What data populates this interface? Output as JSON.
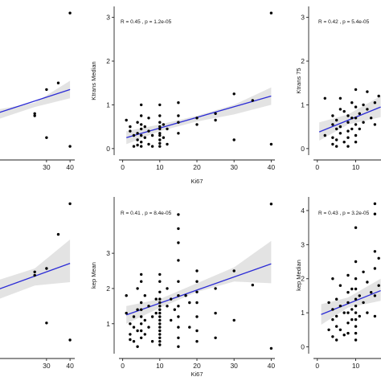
{
  "chart_data": [
    {
      "id": "top-left",
      "type": "scatter",
      "title": "",
      "xlabel": "",
      "ylabel": "",
      "stat": "",
      "xticks": [
        30,
        40
      ],
      "yticks": [],
      "xlim": [
        0,
        42
      ],
      "ylim": [
        -0.15,
        3.25
      ],
      "points": [
        [
          40,
          3.1
        ],
        [
          25,
          0.8
        ],
        [
          25,
          0.75
        ],
        [
          30,
          1.35
        ],
        [
          35,
          1.5
        ],
        [
          30,
          0.25
        ],
        [
          40,
          0.05
        ]
      ],
      "fit": {
        "x": [
          0,
          40
        ],
        "y": [
          0.65,
          1.35
        ]
      },
      "ci": {
        "x": [
          0,
          25,
          40
        ],
        "upper": [
          0.8,
          1.05,
          1.55
        ],
        "lower": [
          0.5,
          0.95,
          1.15
        ]
      }
    },
    {
      "id": "top-middle",
      "type": "scatter",
      "title": "",
      "xlabel": "Ki67",
      "ylabel": "Ktrans Median",
      "stat": "R = 0.45 , p = 1.2e-05",
      "xticks": [
        0,
        10,
        20,
        30,
        40
      ],
      "yticks": [
        0,
        1,
        2,
        3
      ],
      "xlim": [
        -1,
        41
      ],
      "ylim": [
        -0.15,
        3.25
      ],
      "points": [
        [
          40,
          3.1
        ],
        [
          1,
          0.65
        ],
        [
          2,
          0.5
        ],
        [
          2,
          0.4
        ],
        [
          3,
          0.3
        ],
        [
          3,
          0.05
        ],
        [
          4,
          0.6
        ],
        [
          4,
          0.35
        ],
        [
          4,
          0.2
        ],
        [
          4,
          0.08
        ],
        [
          5,
          1.0
        ],
        [
          5,
          0.75
        ],
        [
          5,
          0.55
        ],
        [
          5,
          0.45
        ],
        [
          5,
          0.3
        ],
        [
          5,
          0.15
        ],
        [
          5,
          0.05
        ],
        [
          6,
          0.5
        ],
        [
          6,
          0.25
        ],
        [
          7,
          0.7
        ],
        [
          7,
          0.4
        ],
        [
          7,
          0.1
        ],
        [
          8,
          0.3
        ],
        [
          8,
          0.05
        ],
        [
          10,
          1.0
        ],
        [
          10,
          0.75
        ],
        [
          10,
          0.6
        ],
        [
          10,
          0.5
        ],
        [
          10,
          0.45
        ],
        [
          10,
          0.35
        ],
        [
          10,
          0.3
        ],
        [
          10,
          0.2
        ],
        [
          10,
          0.12
        ],
        [
          10,
          0.05
        ],
        [
          11,
          0.55
        ],
        [
          11,
          0.25
        ],
        [
          12,
          0.45
        ],
        [
          12,
          0.1
        ],
        [
          15,
          1.05
        ],
        [
          15,
          0.75
        ],
        [
          15,
          0.6
        ],
        [
          15,
          0.35
        ],
        [
          20,
          0.7
        ],
        [
          20,
          0.55
        ],
        [
          25,
          0.65
        ],
        [
          25,
          0.8
        ],
        [
          30,
          1.25
        ],
        [
          30,
          0.2
        ],
        [
          35,
          1.1
        ],
        [
          40,
          0.1
        ]
      ],
      "fit": {
        "x": [
          1,
          40
        ],
        "y": [
          0.25,
          1.2
        ]
      },
      "ci": {
        "x": [
          1,
          10,
          20,
          30,
          40
        ],
        "upper": [
          0.4,
          0.55,
          0.75,
          1.0,
          1.4
        ],
        "lower": [
          0.1,
          0.4,
          0.62,
          0.78,
          1.0
        ]
      }
    },
    {
      "id": "top-right",
      "type": "scatter",
      "title": "",
      "xlabel": "",
      "ylabel": "Ktrans 75",
      "stat": "R = 0.42 , p = 5.4e-05",
      "xticks": [
        0,
        10
      ],
      "yticks": [
        0,
        1,
        2,
        3
      ],
      "xlim": [
        -1,
        17
      ],
      "ylim": [
        -0.15,
        3.25
      ],
      "points": [
        [
          2,
          1.15
        ],
        [
          2,
          0.3
        ],
        [
          4,
          0.75
        ],
        [
          4,
          0.55
        ],
        [
          4,
          0.25
        ],
        [
          4,
          0.1
        ],
        [
          5,
          0.65
        ],
        [
          5,
          0.45
        ],
        [
          5,
          0.2
        ],
        [
          5,
          0.05
        ],
        [
          6,
          1.15
        ],
        [
          6,
          0.9
        ],
        [
          6,
          0.5
        ],
        [
          6,
          0.35
        ],
        [
          7,
          0.85
        ],
        [
          7,
          0.15
        ],
        [
          8,
          0.75
        ],
        [
          8,
          0.6
        ],
        [
          8,
          0.4
        ],
        [
          8,
          0.25
        ],
        [
          8,
          0.05
        ],
        [
          9,
          1.05
        ],
        [
          9,
          0.7
        ],
        [
          9,
          0.45
        ],
        [
          10,
          1.35
        ],
        [
          10,
          0.95
        ],
        [
          10,
          0.7
        ],
        [
          10,
          0.55
        ],
        [
          10,
          0.3
        ],
        [
          10,
          0.15
        ],
        [
          11,
          0.8
        ],
        [
          11,
          0.45
        ],
        [
          12,
          1.0
        ],
        [
          12,
          0.6
        ],
        [
          13,
          1.3
        ],
        [
          13,
          0.9
        ],
        [
          14,
          0.7
        ],
        [
          15,
          1.05
        ],
        [
          15,
          0.55
        ],
        [
          16,
          1.2
        ]
      ],
      "fit": {
        "x": [
          0.5,
          16.5
        ],
        "y": [
          0.38,
          0.95
        ]
      },
      "ci": {
        "x": [
          0.5,
          8,
          16.5
        ],
        "upper": [
          0.6,
          0.78,
          1.2
        ],
        "lower": [
          0.18,
          0.55,
          0.72
        ]
      }
    },
    {
      "id": "bottom-left",
      "type": "scatter",
      "title": "",
      "xlabel": "",
      "ylabel": "",
      "stat": "",
      "xticks": [
        30,
        40
      ],
      "yticks": [],
      "xlim": [
        0,
        42
      ],
      "ylim": [
        0,
        4.6
      ],
      "points": [
        [
          40,
          4.4
        ],
        [
          35,
          3.5
        ],
        [
          25,
          2.4
        ],
        [
          25,
          2.3
        ],
        [
          30,
          2.5
        ],
        [
          30,
          0.9
        ],
        [
          40,
          0.4
        ]
      ],
      "fit": {
        "x": [
          0,
          40
        ],
        "y": [
          1.65,
          2.65
        ]
      },
      "ci": {
        "x": [
          0,
          25,
          40
        ],
        "upper": [
          1.95,
          2.5,
          3.35
        ],
        "lower": [
          1.35,
          2.0,
          2.1
        ]
      }
    },
    {
      "id": "bottom-middle",
      "type": "scatter",
      "title": "",
      "xlabel": "Ki67",
      "ylabel": "kep Mean",
      "stat": "R = 0.41 , p = 8.4e-05",
      "xticks": [
        0,
        10,
        20,
        30,
        40
      ],
      "yticks": [
        1,
        2,
        3
      ],
      "xlim": [
        -1,
        41
      ],
      "ylim": [
        0.15,
        4.6
      ],
      "points": [
        [
          40,
          4.4
        ],
        [
          1,
          1.8
        ],
        [
          1,
          1.3
        ],
        [
          2,
          1.0
        ],
        [
          2,
          0.7
        ],
        [
          2,
          0.55
        ],
        [
          3,
          1.2
        ],
        [
          3,
          0.9
        ],
        [
          3,
          0.5
        ],
        [
          4,
          1.4
        ],
        [
          4,
          2.0
        ],
        [
          4,
          0.8
        ],
        [
          4,
          0.35
        ],
        [
          5,
          2.4
        ],
        [
          5,
          2.2
        ],
        [
          5,
          1.6
        ],
        [
          5,
          1.4
        ],
        [
          5,
          1.2
        ],
        [
          5,
          1.0
        ],
        [
          5,
          0.8
        ],
        [
          5,
          0.6
        ],
        [
          6,
          1.8
        ],
        [
          6,
          1.1
        ],
        [
          6,
          0.7
        ],
        [
          7,
          1.5
        ],
        [
          7,
          0.9
        ],
        [
          8,
          1.2
        ],
        [
          8,
          0.5
        ],
        [
          9,
          1.7
        ],
        [
          9,
          1.3
        ],
        [
          10,
          2.4
        ],
        [
          10,
          2.2
        ],
        [
          10,
          1.9
        ],
        [
          10,
          1.7
        ],
        [
          10,
          1.6
        ],
        [
          10,
          1.5
        ],
        [
          10,
          1.4
        ],
        [
          10,
          1.3
        ],
        [
          10,
          1.2
        ],
        [
          10,
          1.1
        ],
        [
          10,
          1.0
        ],
        [
          10,
          0.9
        ],
        [
          10,
          0.8
        ],
        [
          10,
          0.7
        ],
        [
          10,
          0.6
        ],
        [
          10,
          0.5
        ],
        [
          10,
          0.4
        ],
        [
          12,
          2.0
        ],
        [
          12,
          1.5
        ],
        [
          13,
          1.7
        ],
        [
          13,
          1.1
        ],
        [
          14,
          1.4
        ],
        [
          15,
          4.1
        ],
        [
          15,
          3.7
        ],
        [
          15,
          3.3
        ],
        [
          15,
          2.8
        ],
        [
          15,
          2.2
        ],
        [
          15,
          1.8
        ],
        [
          15,
          1.5
        ],
        [
          15,
          1.2
        ],
        [
          15,
          0.9
        ],
        [
          15,
          0.6
        ],
        [
          15,
          0.35
        ],
        [
          17,
          1.8
        ],
        [
          18,
          1.6
        ],
        [
          18,
          0.9
        ],
        [
          20,
          2.5
        ],
        [
          20,
          2.2
        ],
        [
          20,
          1.9
        ],
        [
          20,
          1.6
        ],
        [
          20,
          1.2
        ],
        [
          20,
          0.8
        ],
        [
          20,
          0.5
        ],
        [
          25,
          2.0
        ],
        [
          25,
          1.3
        ],
        [
          25,
          0.6
        ],
        [
          30,
          2.5
        ],
        [
          30,
          1.1
        ],
        [
          35,
          2.1
        ],
        [
          40,
          0.3
        ]
      ],
      "fit": {
        "x": [
          1,
          40
        ],
        "y": [
          1.25,
          2.7
        ]
      },
      "ci": {
        "x": [
          1,
          10,
          20,
          30,
          40
        ],
        "upper": [
          1.5,
          1.7,
          2.15,
          2.6,
          3.35
        ],
        "lower": [
          1.0,
          1.45,
          1.9,
          2.2,
          2.15
        ]
      }
    },
    {
      "id": "bottom-right",
      "type": "scatter",
      "title": "",
      "xlabel": "",
      "ylabel": "kep Median",
      "stat": "R = 0.43 , p = 3.2e-05",
      "xticks": [
        0,
        10
      ],
      "yticks": [
        0,
        1,
        2,
        3,
        4
      ],
      "xlim": [
        -1,
        17
      ],
      "ylim": [
        -0.2,
        4.4
      ],
      "points": [
        [
          3,
          1.3
        ],
        [
          3,
          0.5
        ],
        [
          4,
          2.0
        ],
        [
          4,
          1.1
        ],
        [
          4,
          0.8
        ],
        [
          4,
          0.3
        ],
        [
          5,
          1.4
        ],
        [
          5,
          0.9
        ],
        [
          5,
          0.6
        ],
        [
          5,
          0.2
        ],
        [
          6,
          1.8
        ],
        [
          6,
          1.2
        ],
        [
          6,
          0.5
        ],
        [
          7,
          1.0
        ],
        [
          7,
          0.35
        ],
        [
          8,
          2.1
        ],
        [
          8,
          1.6
        ],
        [
          8,
          1.3
        ],
        [
          8,
          1.0
        ],
        [
          8,
          0.7
        ],
        [
          8,
          0.4
        ],
        [
          9,
          1.7
        ],
        [
          9,
          1.1
        ],
        [
          9,
          0.8
        ],
        [
          10,
          3.5
        ],
        [
          10,
          2.5
        ],
        [
          10,
          2.0
        ],
        [
          10,
          1.7
        ],
        [
          10,
          1.4
        ],
        [
          10,
          1.2
        ],
        [
          10,
          1.0
        ],
        [
          10,
          0.8
        ],
        [
          10,
          0.6
        ],
        [
          10,
          0.4
        ],
        [
          10,
          0.2
        ],
        [
          11,
          1.5
        ],
        [
          11,
          0.9
        ],
        [
          12,
          2.2
        ],
        [
          12,
          1.3
        ],
        [
          13,
          1.9
        ],
        [
          13,
          1.0
        ],
        [
          14,
          1.6
        ],
        [
          15,
          4.2
        ],
        [
          15,
          3.9
        ],
        [
          15,
          2.8
        ],
        [
          15,
          2.3
        ],
        [
          15,
          1.5
        ],
        [
          15,
          0.9
        ],
        [
          16,
          2.6
        ],
        [
          16,
          1.8
        ]
      ],
      "fit": {
        "x": [
          1,
          16.5
        ],
        "y": [
          0.95,
          1.65
        ]
      },
      "ci": {
        "x": [
          1,
          8,
          16.5
        ],
        "upper": [
          1.25,
          1.45,
          2.0
        ],
        "lower": [
          0.65,
          1.15,
          1.35
        ]
      }
    }
  ]
}
